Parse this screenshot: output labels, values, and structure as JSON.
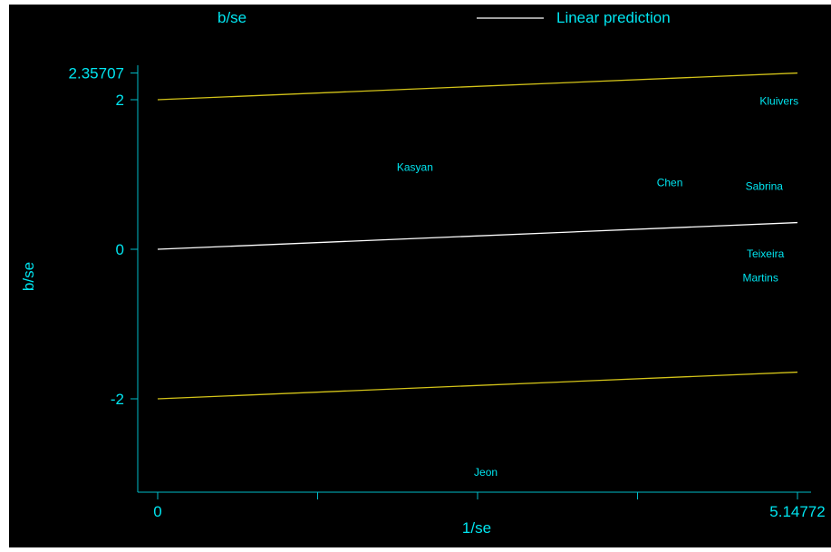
{
  "chart_data": {
    "type": "scatter",
    "title": "",
    "xlabel": "1/se",
    "ylabel": "b/se",
    "xlim": [
      0,
      5.14772
    ],
    "ylim": [
      -3.2,
      2.35707
    ],
    "x_ticks": [
      {
        "value": 0,
        "label": "0"
      },
      {
        "value": 1.28693,
        "label": ""
      },
      {
        "value": 2.57386,
        "label": ""
      },
      {
        "value": 3.86079,
        "label": ""
      },
      {
        "value": 5.14772,
        "label": "5.14772"
      }
    ],
    "y_ticks": [
      {
        "value": 2.35707,
        "label": "2.35707"
      },
      {
        "value": 2,
        "label": "2"
      },
      {
        "value": 0,
        "label": "0"
      },
      {
        "value": -2,
        "label": "-2"
      }
    ],
    "legend": {
      "placement": "top",
      "entries": [
        {
          "label": "b/se",
          "kind": "marker"
        },
        {
          "label": "Linear prediction",
          "kind": "line"
        }
      ]
    },
    "points": [
      {
        "label": "Kluivers",
        "x": 5.0,
        "y": 1.98
      },
      {
        "label": "Kasyan",
        "x": 2.07,
        "y": 1.1
      },
      {
        "label": "Chen",
        "x": 4.12,
        "y": 0.89
      },
      {
        "label": "Sabrina",
        "x": 4.88,
        "y": 0.84
      },
      {
        "label": "Teixeira",
        "x": 4.89,
        "y": -0.06
      },
      {
        "label": "Martins",
        "x": 4.85,
        "y": -0.38
      },
      {
        "label": "Jeon",
        "x": 2.64,
        "y": -2.98
      }
    ],
    "lines": [
      {
        "name": "Linear prediction",
        "color": "#ffffff",
        "x": [
          0,
          5.14772
        ],
        "y": [
          0,
          0.35707
        ]
      },
      {
        "name": "upper",
        "color": "#d4c419",
        "x": [
          0,
          5.14772
        ],
        "y": [
          2,
          2.35707
        ]
      },
      {
        "name": "lower",
        "color": "#d4c419",
        "x": [
          0,
          5.14772
        ],
        "y": [
          -2,
          -1.64293
        ]
      }
    ]
  },
  "colors": {
    "background": "#000000",
    "axis": "#00bcc8",
    "text": "#00e5f0",
    "prediction_line": "#ffffff",
    "ci_line": "#d4c419"
  }
}
